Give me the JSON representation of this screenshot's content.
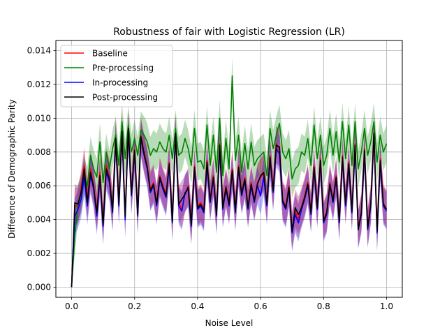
{
  "chart_data": {
    "type": "line",
    "title": "Robustness of fair with Logistic Regression (LR)",
    "xlabel": "Noise Level",
    "ylabel": "Difference of Demographic Parity",
    "xlim": [
      -0.05,
      1.05
    ],
    "ylim": [
      -0.0006,
      0.0146
    ],
    "xticks": [
      0.0,
      0.2,
      0.4,
      0.6,
      0.8,
      1.0
    ],
    "xtick_labels": [
      "0.0",
      "0.2",
      "0.4",
      "0.6",
      "0.8",
      "1.0"
    ],
    "yticks": [
      0.0,
      0.002,
      0.004,
      0.006,
      0.008,
      0.01,
      0.012,
      0.014
    ],
    "ytick_labels": [
      "0.000",
      "0.002",
      "0.004",
      "0.006",
      "0.008",
      "0.010",
      "0.012",
      "0.014"
    ],
    "grid": true,
    "legend_position": "upper-left",
    "x": [
      0.0,
      0.01,
      0.02,
      0.03,
      0.04,
      0.05,
      0.06,
      0.07,
      0.08,
      0.09,
      0.1,
      0.11,
      0.12,
      0.13,
      0.14,
      0.15,
      0.16,
      0.17,
      0.18,
      0.19,
      0.2,
      0.21,
      0.22,
      0.23,
      0.24,
      0.25,
      0.26,
      0.27,
      0.28,
      0.29,
      0.3,
      0.31,
      0.32,
      0.33,
      0.34,
      0.35,
      0.36,
      0.37,
      0.38,
      0.39,
      0.4,
      0.41,
      0.42,
      0.43,
      0.44,
      0.45,
      0.46,
      0.47,
      0.48,
      0.49,
      0.5,
      0.51,
      0.52,
      0.53,
      0.54,
      0.55,
      0.56,
      0.57,
      0.58,
      0.59,
      0.6,
      0.61,
      0.62,
      0.63,
      0.64,
      0.65,
      0.66,
      0.67,
      0.68,
      0.69,
      0.7,
      0.71,
      0.72,
      0.73,
      0.74,
      0.75,
      0.76,
      0.77,
      0.78,
      0.79,
      0.8,
      0.81,
      0.82,
      0.83,
      0.84,
      0.85,
      0.86,
      0.87,
      0.88,
      0.89,
      0.9,
      0.91,
      0.92,
      0.93,
      0.94,
      0.95,
      0.96,
      0.97,
      0.98,
      0.99,
      1.0
    ],
    "series": [
      {
        "name": "Baseline",
        "color": "#ff0000",
        "band_color": "#ff0000",
        "values": [
          0.0,
          0.0048,
          0.0048,
          0.0058,
          0.0072,
          0.0052,
          0.007,
          0.006,
          0.0045,
          0.0068,
          0.0038,
          0.0072,
          0.0065,
          0.0046,
          0.009,
          0.005,
          0.0094,
          0.0043,
          0.0095,
          0.0056,
          0.0082,
          0.0044,
          0.009,
          0.008,
          0.0072,
          0.0058,
          0.0062,
          0.005,
          0.0066,
          0.006,
          0.0055,
          0.0074,
          0.004,
          0.0092,
          0.005,
          0.0046,
          0.0055,
          0.006,
          0.0038,
          0.0072,
          0.0048,
          0.005,
          0.0046,
          0.0075,
          0.0052,
          0.0066,
          0.0044,
          0.0085,
          0.0048,
          0.006,
          0.005,
          0.007,
          0.0046,
          0.0072,
          0.0056,
          0.0065,
          0.0048,
          0.0062,
          0.0052,
          0.0062,
          0.0065,
          0.0067,
          0.005,
          0.0078,
          0.0058,
          0.0085,
          0.0081,
          0.0052,
          0.0048,
          0.006,
          0.0034,
          0.0045,
          0.004,
          0.0048,
          0.0054,
          0.0062,
          0.0045,
          0.0072,
          0.0048,
          0.0076,
          0.004,
          0.0045,
          0.0062,
          0.0052,
          0.0066,
          0.004,
          0.0078,
          0.005,
          0.0074,
          0.0046,
          0.0085,
          0.0035,
          0.0045,
          0.0082,
          0.0036,
          0.005,
          0.0092,
          0.0034,
          0.0076,
          0.005,
          0.0046
        ]
      },
      {
        "name": "Pre-processing",
        "color": "#008000",
        "band_color": "#008000",
        "values": [
          0.0,
          0.003,
          0.005,
          0.0055,
          0.0066,
          0.006,
          0.0078,
          0.007,
          0.0065,
          0.0086,
          0.0062,
          0.008,
          0.007,
          0.0082,
          0.009,
          0.0072,
          0.0098,
          0.0076,
          0.0096,
          0.008,
          0.0088,
          0.0078,
          0.0093,
          0.009,
          0.0086,
          0.0078,
          0.0082,
          0.008,
          0.0086,
          0.0082,
          0.008,
          0.009,
          0.0076,
          0.0094,
          0.0078,
          0.008,
          0.0088,
          0.0082,
          0.0072,
          0.0094,
          0.0074,
          0.0075,
          0.007,
          0.0096,
          0.0072,
          0.009,
          0.0068,
          0.01,
          0.0066,
          0.0088,
          0.007,
          0.0125,
          0.0075,
          0.009,
          0.0068,
          0.0085,
          0.007,
          0.0086,
          0.0072,
          0.0076,
          0.0078,
          0.008,
          0.0066,
          0.0094,
          0.0082,
          0.009,
          0.0097,
          0.008,
          0.0076,
          0.0082,
          0.0064,
          0.007,
          0.0072,
          0.008,
          0.0078,
          0.0088,
          0.0072,
          0.0096,
          0.0076,
          0.009,
          0.0072,
          0.0078,
          0.0094,
          0.0078,
          0.0092,
          0.0074,
          0.0098,
          0.0076,
          0.0096,
          0.0072,
          0.0098,
          0.007,
          0.008,
          0.0094,
          0.0078,
          0.0086,
          0.0098,
          0.0074,
          0.009,
          0.008,
          0.0085
        ]
      },
      {
        "name": "In-processing",
        "color": "#0000ff",
        "band_color": "#0000ff",
        "values": [
          0.0,
          0.0042,
          0.0046,
          0.0052,
          0.0065,
          0.0048,
          0.0066,
          0.0058,
          0.0042,
          0.0064,
          0.0036,
          0.0068,
          0.0062,
          0.0044,
          0.0086,
          0.0048,
          0.009,
          0.004,
          0.0092,
          0.0054,
          0.008,
          0.0042,
          0.0088,
          0.0078,
          0.007,
          0.0056,
          0.006,
          0.0048,
          0.0064,
          0.0058,
          0.0053,
          0.0072,
          0.0038,
          0.009,
          0.0048,
          0.0045,
          0.0056,
          0.0058,
          0.0036,
          0.007,
          0.0046,
          0.0048,
          0.0044,
          0.0072,
          0.005,
          0.0064,
          0.0042,
          0.0082,
          0.0046,
          0.0058,
          0.0048,
          0.0068,
          0.0044,
          0.007,
          0.0054,
          0.0063,
          0.0046,
          0.006,
          0.005,
          0.006,
          0.0054,
          0.0065,
          0.0048,
          0.0076,
          0.0056,
          0.0082,
          0.0079,
          0.005,
          0.0046,
          0.0058,
          0.0032,
          0.0043,
          0.0038,
          0.0046,
          0.0052,
          0.006,
          0.0043,
          0.007,
          0.0046,
          0.0074,
          0.0038,
          0.0043,
          0.006,
          0.005,
          0.0064,
          0.0038,
          0.0076,
          0.0048,
          0.0072,
          0.0044,
          0.0083,
          0.0034,
          0.0043,
          0.008,
          0.0034,
          0.0048,
          0.009,
          0.0032,
          0.0074,
          0.0048,
          0.0045
        ]
      },
      {
        "name": "Post-processing",
        "color": "#000000",
        "band_color": "#800080",
        "values": [
          0.0,
          0.005,
          0.0049,
          0.0056,
          0.007,
          0.005,
          0.0068,
          0.0059,
          0.0044,
          0.0066,
          0.0037,
          0.007,
          0.0064,
          0.0045,
          0.0088,
          0.0049,
          0.0092,
          0.0042,
          0.0094,
          0.0055,
          0.0081,
          0.0043,
          0.0089,
          0.0079,
          0.0071,
          0.0057,
          0.0061,
          0.0049,
          0.0065,
          0.0059,
          0.0054,
          0.0073,
          0.0039,
          0.0091,
          0.0049,
          0.0052,
          0.0055,
          0.0059,
          0.0037,
          0.0071,
          0.0047,
          0.0049,
          0.0045,
          0.0074,
          0.0051,
          0.0065,
          0.0043,
          0.0084,
          0.0047,
          0.0059,
          0.0049,
          0.0069,
          0.0045,
          0.0071,
          0.0055,
          0.0064,
          0.0047,
          0.0061,
          0.0051,
          0.0061,
          0.0066,
          0.0068,
          0.0049,
          0.0077,
          0.0057,
          0.0084,
          0.0083,
          0.0051,
          0.0047,
          0.0059,
          0.0033,
          0.0047,
          0.0043,
          0.0047,
          0.0053,
          0.0061,
          0.0044,
          0.0071,
          0.0047,
          0.0075,
          0.0039,
          0.0044,
          0.0061,
          0.0051,
          0.0065,
          0.0039,
          0.0077,
          0.0049,
          0.0073,
          0.0045,
          0.0084,
          0.0034,
          0.0044,
          0.0081,
          0.0035,
          0.0049,
          0.0091,
          0.0033,
          0.0075,
          0.0049,
          0.0046
        ]
      }
    ],
    "band_halfwidth": 0.0011
  }
}
